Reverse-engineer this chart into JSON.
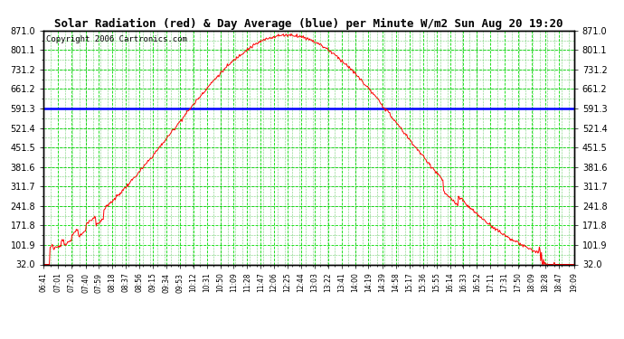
{
  "title": "Solar Radiation (red) & Day Average (blue) per Minute W/m2 Sun Aug 20 19:20",
  "copyright": "Copyright 2006 Cartronics.com",
  "y_min": 32.0,
  "y_max": 871.0,
  "y_ticks": [
    32.0,
    101.9,
    171.8,
    241.8,
    311.7,
    381.6,
    451.5,
    521.4,
    591.3,
    661.2,
    731.2,
    801.1,
    871.0
  ],
  "day_average": 591.3,
  "line_color": "red",
  "avg_color": "blue",
  "grid_major_color": "#00dd00",
  "grid_minor_color": "#00aa00",
  "background_color": "#ffffff",
  "plot_bg_color": "#ffffff",
  "x_labels": [
    "06:41",
    "07:01",
    "07:20",
    "07:40",
    "07:59",
    "08:18",
    "08:37",
    "08:56",
    "09:15",
    "09:34",
    "09:53",
    "10:12",
    "10:31",
    "10:50",
    "11:09",
    "11:28",
    "11:47",
    "12:06",
    "12:25",
    "12:44",
    "13:03",
    "13:22",
    "13:41",
    "14:00",
    "14:19",
    "14:39",
    "14:58",
    "15:17",
    "15:36",
    "15:55",
    "16:14",
    "16:33",
    "16:52",
    "17:11",
    "17:31",
    "17:50",
    "18:09",
    "18:28",
    "18:47",
    "19:09"
  ],
  "peak_time": "12:25",
  "peak_value": 855,
  "sigma": 160,
  "noise_std": 3,
  "title_fontsize": 9,
  "copyright_fontsize": 6.5,
  "tick_fontsize": 7,
  "xtick_fontsize": 5.5
}
